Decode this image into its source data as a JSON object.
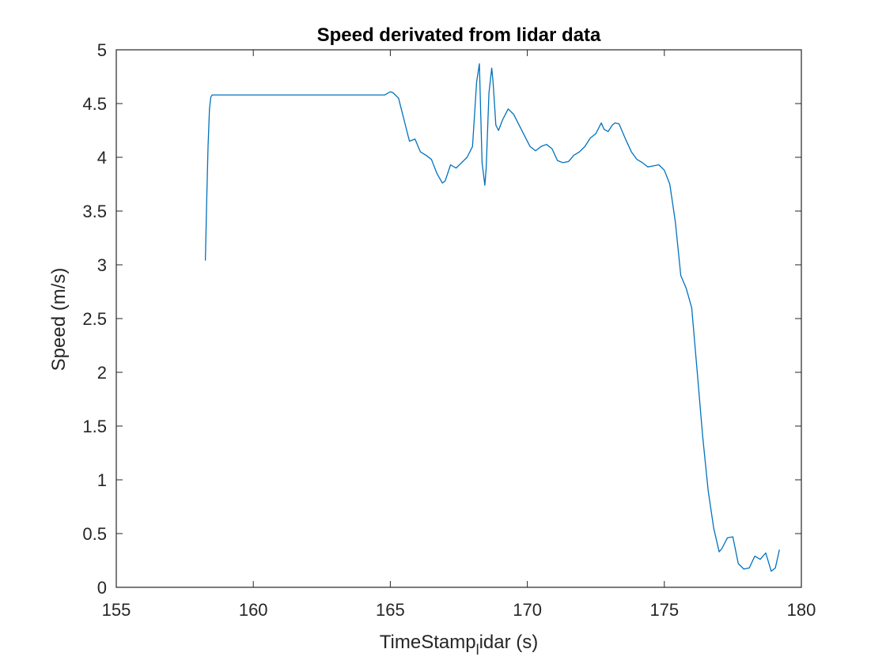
{
  "chart_data": {
    "type": "line",
    "title": "Speed derivated from lidar data",
    "xlabel": "TimeStamp",
    "xlabel_subscript": "l",
    "xlabel_rest": "idar (s)",
    "ylabel": "Speed (m/s)",
    "xlim": [
      155,
      180
    ],
    "ylim": [
      0,
      5
    ],
    "xticks": [
      155,
      160,
      165,
      170,
      175,
      180
    ],
    "yticks": [
      0,
      0.5,
      1,
      1.5,
      2,
      2.5,
      3,
      3.5,
      4,
      4.5,
      5
    ],
    "xtick_labels": [
      "155",
      "160",
      "165",
      "170",
      "175",
      "180"
    ],
    "ytick_labels": [
      "0",
      "0.5",
      "1",
      "1.5",
      "2",
      "2.5",
      "3",
      "3.5",
      "4",
      "4.5",
      "5"
    ],
    "grid": false,
    "line_color": "#0072BD",
    "series": [
      {
        "x": [
          158.25,
          158.3,
          158.35,
          158.4,
          158.45,
          158.5,
          158.6,
          159.0,
          160.0,
          161.0,
          162.0,
          163.0,
          164.0,
          164.8,
          165.0,
          165.1,
          165.3,
          165.5,
          165.7,
          165.9,
          166.1,
          166.3,
          166.5,
          166.7,
          166.9,
          167.0,
          167.2,
          167.4,
          167.6,
          167.8,
          168.0,
          168.15,
          168.25,
          168.3,
          168.35,
          168.45,
          168.5,
          168.6,
          168.7,
          168.75,
          168.85,
          168.95,
          169.1,
          169.3,
          169.5,
          169.7,
          169.9,
          170.1,
          170.3,
          170.5,
          170.7,
          170.9,
          171.1,
          171.3,
          171.5,
          171.7,
          171.9,
          172.1,
          172.3,
          172.5,
          172.7,
          172.8,
          172.95,
          173.1,
          173.2,
          173.35,
          173.5,
          173.6,
          173.8,
          174.0,
          174.2,
          174.4,
          174.6,
          174.8,
          175.0,
          175.2,
          175.4,
          175.6,
          175.8,
          176.0,
          176.2,
          176.4,
          176.6,
          176.8,
          177.0,
          177.1,
          177.3,
          177.5,
          177.7,
          177.9,
          178.1,
          178.3,
          178.5,
          178.7,
          178.9,
          179.05,
          179.2
        ],
        "y": [
          3.04,
          3.6,
          4.1,
          4.45,
          4.56,
          4.58,
          4.58,
          4.58,
          4.58,
          4.58,
          4.58,
          4.58,
          4.58,
          4.58,
          4.61,
          4.6,
          4.55,
          4.35,
          4.15,
          4.17,
          4.05,
          4.02,
          3.98,
          3.85,
          3.76,
          3.78,
          3.93,
          3.9,
          3.95,
          4.0,
          4.1,
          4.7,
          4.87,
          4.4,
          3.95,
          3.74,
          3.9,
          4.6,
          4.83,
          4.7,
          4.3,
          4.25,
          4.35,
          4.45,
          4.4,
          4.3,
          4.2,
          4.1,
          4.06,
          4.1,
          4.12,
          4.08,
          3.97,
          3.95,
          3.96,
          4.02,
          4.05,
          4.1,
          4.18,
          4.22,
          4.32,
          4.26,
          4.24,
          4.3,
          4.32,
          4.31,
          4.22,
          4.16,
          4.05,
          3.98,
          3.95,
          3.91,
          3.92,
          3.93,
          3.88,
          3.75,
          3.4,
          2.9,
          2.78,
          2.6,
          2.0,
          1.4,
          0.9,
          0.55,
          0.33,
          0.36,
          0.46,
          0.47,
          0.22,
          0.17,
          0.18,
          0.29,
          0.26,
          0.32,
          0.15,
          0.18,
          0.35
        ]
      }
    ]
  }
}
